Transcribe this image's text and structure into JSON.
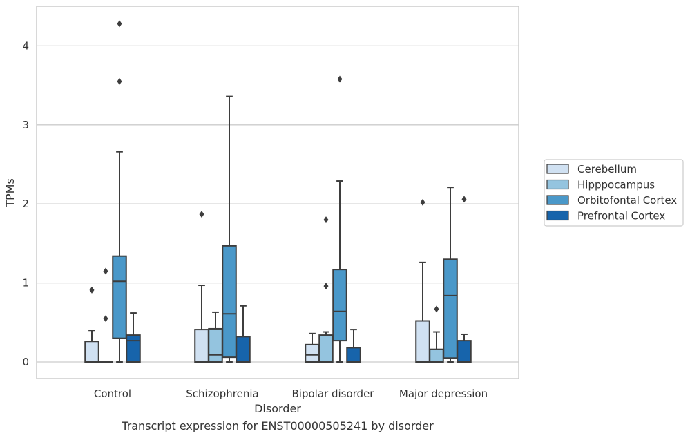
{
  "chart_data": {
    "type": "box",
    "title": "",
    "caption": "Transcript expression for ENST00000505241 by disorder",
    "xlabel": "Disorder",
    "ylabel": "TPMs",
    "ylim": [
      -0.21,
      4.5
    ],
    "yticks": [
      0,
      1,
      2,
      3,
      4
    ],
    "grid": "horizontal",
    "legend": {
      "placement": "right",
      "entries": [
        "Cerebellum",
        "Hipppocampus",
        "Orbitofontal Cortex",
        "Prefrontal Cortex"
      ]
    },
    "colors": {
      "Cerebellum": "#d0e1f2",
      "Hipppocampus": "#94c4df",
      "Orbitofontal Cortex": "#4a98c9",
      "Prefrontal Cortex": "#1764ab"
    },
    "categories": [
      "Control",
      "Schizophrenia",
      "Bipolar disorder",
      "Major depression"
    ],
    "series": [
      {
        "name": "Cerebellum",
        "boxes": [
          {
            "whislo": 0,
            "q1": 0,
            "med": 0,
            "q3": 0.26,
            "whishi": 0.4,
            "fliers": [
              0.91
            ]
          },
          {
            "whislo": 0,
            "q1": 0,
            "med": 0,
            "q3": 0.41,
            "whishi": 0.97,
            "fliers": [
              1.87
            ]
          },
          {
            "whislo": 0,
            "q1": 0,
            "med": 0.09,
            "q3": 0.22,
            "whishi": 0.36,
            "fliers": []
          },
          {
            "whislo": 0,
            "q1": 0,
            "med": 0,
            "q3": 0.52,
            "whishi": 1.26,
            "fliers": [
              2.02
            ]
          }
        ]
      },
      {
        "name": "Hipppocampus",
        "boxes": [
          {
            "whislo": 0,
            "q1": 0,
            "med": 0,
            "q3": 0,
            "whishi": 0,
            "fliers": [
              0.55,
              1.15
            ]
          },
          {
            "whislo": 0,
            "q1": 0,
            "med": 0.09,
            "q3": 0.42,
            "whishi": 0.63,
            "fliers": []
          },
          {
            "whislo": 0,
            "q1": 0,
            "med": 0,
            "q3": 0.34,
            "whishi": 0.38,
            "fliers": [
              0.96,
              1.8
            ]
          },
          {
            "whislo": 0,
            "q1": 0,
            "med": 0,
            "q3": 0.16,
            "whishi": 0.38,
            "fliers": [
              0.67
            ]
          }
        ]
      },
      {
        "name": "Orbitofontal Cortex",
        "boxes": [
          {
            "whislo": 0,
            "q1": 0.3,
            "med": 1.02,
            "q3": 1.34,
            "whishi": 2.66,
            "fliers": [
              3.55,
              4.28
            ]
          },
          {
            "whislo": 0,
            "q1": 0.06,
            "med": 0.61,
            "q3": 1.47,
            "whishi": 3.36,
            "fliers": []
          },
          {
            "whislo": 0,
            "q1": 0.27,
            "med": 0.64,
            "q3": 1.17,
            "whishi": 2.29,
            "fliers": [
              3.58
            ]
          },
          {
            "whislo": 0,
            "q1": 0.05,
            "med": 0.84,
            "q3": 1.3,
            "whishi": 2.21,
            "fliers": []
          }
        ]
      },
      {
        "name": "Prefrontal Cortex",
        "boxes": [
          {
            "whislo": 0,
            "q1": 0,
            "med": 0.27,
            "q3": 0.34,
            "whishi": 0.62,
            "fliers": []
          },
          {
            "whislo": 0,
            "q1": 0,
            "med": 0,
            "q3": 0.32,
            "whishi": 0.71,
            "fliers": []
          },
          {
            "whislo": 0,
            "q1": 0,
            "med": 0,
            "q3": 0.18,
            "whishi": 0.41,
            "fliers": []
          },
          {
            "whislo": 0,
            "q1": 0,
            "med": 0,
            "q3": 0.27,
            "whishi": 0.35,
            "fliers": [
              2.06
            ]
          }
        ]
      }
    ]
  }
}
